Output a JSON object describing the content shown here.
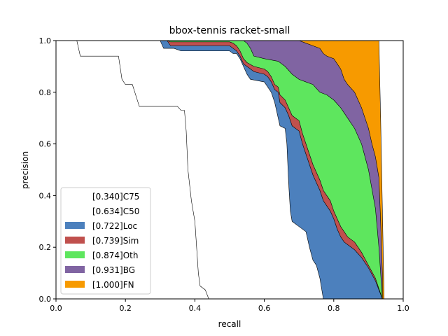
{
  "chart_data": {
    "type": "area",
    "title": "bbox-tennis racket-small",
    "xlabel": "recall",
    "ylabel": "precision",
    "xlim": [
      0,
      1
    ],
    "ylim": [
      0,
      1
    ],
    "xticks": [
      "0.0",
      "0.2",
      "0.4",
      "0.6",
      "0.8",
      "1.0"
    ],
    "yticks": [
      "0.0",
      "0.2",
      "0.4",
      "0.6",
      "0.8",
      "1.0"
    ],
    "grid": false,
    "legend_position": "lower-left",
    "series": [
      {
        "name": "[0.340]C75",
        "color": "#ffffff",
        "points": [
          [
            0,
            1
          ],
          [
            0.06,
            1
          ],
          [
            0.07,
            0.94
          ],
          [
            0.18,
            0.94
          ],
          [
            0.19,
            0.85
          ],
          [
            0.2,
            0.83
          ],
          [
            0.22,
            0.83
          ],
          [
            0.24,
            0.745
          ],
          [
            0.35,
            0.745
          ],
          [
            0.36,
            0.73
          ],
          [
            0.37,
            0.73
          ],
          [
            0.375,
            0.65
          ],
          [
            0.38,
            0.5
          ],
          [
            0.39,
            0.38
          ],
          [
            0.4,
            0.3
          ],
          [
            0.405,
            0.2
          ],
          [
            0.41,
            0.1
          ],
          [
            0.415,
            0.05
          ],
          [
            0.43,
            0.035
          ],
          [
            0.44,
            0.0
          ]
        ]
      },
      {
        "name": "[0.634]C50",
        "color": "#ffffff",
        "points": [
          [
            0,
            1
          ],
          [
            0.3,
            1
          ],
          [
            0.31,
            0.97
          ],
          [
            0.34,
            0.97
          ],
          [
            0.36,
            0.96
          ],
          [
            0.5,
            0.96
          ],
          [
            0.51,
            0.95
          ],
          [
            0.52,
            0.95
          ],
          [
            0.53,
            0.93
          ],
          [
            0.54,
            0.9
          ],
          [
            0.55,
            0.87
          ],
          [
            0.56,
            0.85
          ],
          [
            0.6,
            0.84
          ],
          [
            0.61,
            0.82
          ],
          [
            0.62,
            0.8
          ],
          [
            0.63,
            0.76
          ],
          [
            0.64,
            0.7
          ],
          [
            0.645,
            0.67
          ],
          [
            0.66,
            0.66
          ],
          [
            0.665,
            0.6
          ],
          [
            0.67,
            0.45
          ],
          [
            0.675,
            0.34
          ],
          [
            0.68,
            0.3
          ],
          [
            0.7,
            0.28
          ],
          [
            0.72,
            0.26
          ],
          [
            0.73,
            0.2
          ],
          [
            0.74,
            0.15
          ],
          [
            0.75,
            0.13
          ],
          [
            0.76,
            0.08
          ],
          [
            0.77,
            0.0
          ]
        ]
      },
      {
        "name": "[0.722]Loc",
        "color": "#4c80bd",
        "points": [
          [
            0,
            1
          ],
          [
            0.32,
            1
          ],
          [
            0.33,
            0.98
          ],
          [
            0.5,
            0.98
          ],
          [
            0.51,
            0.97
          ],
          [
            0.52,
            0.96
          ],
          [
            0.53,
            0.94
          ],
          [
            0.54,
            0.91
          ],
          [
            0.55,
            0.9
          ],
          [
            0.57,
            0.88
          ],
          [
            0.6,
            0.87
          ],
          [
            0.61,
            0.86
          ],
          [
            0.62,
            0.84
          ],
          [
            0.63,
            0.81
          ],
          [
            0.64,
            0.8
          ],
          [
            0.645,
            0.76
          ],
          [
            0.66,
            0.74
          ],
          [
            0.67,
            0.71
          ],
          [
            0.68,
            0.67
          ],
          [
            0.69,
            0.66
          ],
          [
            0.7,
            0.65
          ],
          [
            0.71,
            0.6
          ],
          [
            0.72,
            0.56
          ],
          [
            0.73,
            0.52
          ],
          [
            0.74,
            0.48
          ],
          [
            0.75,
            0.45
          ],
          [
            0.76,
            0.42
          ],
          [
            0.77,
            0.38
          ],
          [
            0.78,
            0.36
          ],
          [
            0.79,
            0.34
          ],
          [
            0.8,
            0.31
          ],
          [
            0.81,
            0.27
          ],
          [
            0.82,
            0.24
          ],
          [
            0.83,
            0.22
          ],
          [
            0.84,
            0.21
          ],
          [
            0.86,
            0.19
          ],
          [
            0.88,
            0.16
          ],
          [
            0.9,
            0.12
          ],
          [
            0.92,
            0.07
          ],
          [
            0.94,
            0.0
          ]
        ]
      },
      {
        "name": "[0.739]Sim",
        "color": "#c0504d",
        "points": [
          [
            0,
            1
          ],
          [
            0.32,
            1
          ],
          [
            0.33,
            0.995
          ],
          [
            0.5,
            0.995
          ],
          [
            0.51,
            0.99
          ],
          [
            0.52,
            0.98
          ],
          [
            0.53,
            0.96
          ],
          [
            0.54,
            0.93
          ],
          [
            0.55,
            0.915
          ],
          [
            0.57,
            0.9
          ],
          [
            0.6,
            0.89
          ],
          [
            0.61,
            0.88
          ],
          [
            0.62,
            0.86
          ],
          [
            0.63,
            0.83
          ],
          [
            0.64,
            0.82
          ],
          [
            0.645,
            0.79
          ],
          [
            0.66,
            0.77
          ],
          [
            0.67,
            0.74
          ],
          [
            0.68,
            0.71
          ],
          [
            0.69,
            0.7
          ],
          [
            0.7,
            0.69
          ],
          [
            0.71,
            0.64
          ],
          [
            0.72,
            0.6
          ],
          [
            0.73,
            0.56
          ],
          [
            0.74,
            0.52
          ],
          [
            0.75,
            0.49
          ],
          [
            0.76,
            0.46
          ],
          [
            0.77,
            0.42
          ],
          [
            0.78,
            0.4
          ],
          [
            0.79,
            0.38
          ],
          [
            0.8,
            0.34
          ],
          [
            0.81,
            0.31
          ],
          [
            0.82,
            0.28
          ],
          [
            0.83,
            0.26
          ],
          [
            0.84,
            0.24
          ],
          [
            0.86,
            0.22
          ],
          [
            0.88,
            0.18
          ],
          [
            0.9,
            0.13
          ],
          [
            0.92,
            0.08
          ],
          [
            0.94,
            0.0
          ]
        ]
      },
      {
        "name": "[0.874]Oth",
        "color": "#5ee65e",
        "points": [
          [
            0,
            1
          ],
          [
            0.32,
            1
          ],
          [
            0.5,
            1
          ],
          [
            0.54,
            1
          ],
          [
            0.55,
            0.99
          ],
          [
            0.56,
            0.97
          ],
          [
            0.57,
            0.94
          ],
          [
            0.6,
            0.93
          ],
          [
            0.64,
            0.92
          ],
          [
            0.66,
            0.9
          ],
          [
            0.68,
            0.87
          ],
          [
            0.7,
            0.85
          ],
          [
            0.72,
            0.84
          ],
          [
            0.74,
            0.83
          ],
          [
            0.76,
            0.8
          ],
          [
            0.78,
            0.79
          ],
          [
            0.8,
            0.77
          ],
          [
            0.82,
            0.74
          ],
          [
            0.84,
            0.7
          ],
          [
            0.86,
            0.66
          ],
          [
            0.88,
            0.6
          ],
          [
            0.9,
            0.5
          ],
          [
            0.92,
            0.35
          ],
          [
            0.93,
            0.2
          ],
          [
            0.935,
            0.1
          ],
          [
            0.94,
            0.0
          ]
        ]
      },
      {
        "name": "[0.931]BG",
        "color": "#8064a2",
        "points": [
          [
            0,
            1
          ],
          [
            0.55,
            1
          ],
          [
            0.7,
            1
          ],
          [
            0.72,
            0.99
          ],
          [
            0.74,
            0.98
          ],
          [
            0.76,
            0.97
          ],
          [
            0.77,
            0.95
          ],
          [
            0.78,
            0.94
          ],
          [
            0.8,
            0.93
          ],
          [
            0.81,
            0.91
          ],
          [
            0.82,
            0.89
          ],
          [
            0.83,
            0.85
          ],
          [
            0.84,
            0.83
          ],
          [
            0.86,
            0.8
          ],
          [
            0.87,
            0.77
          ],
          [
            0.88,
            0.74
          ],
          [
            0.89,
            0.7
          ],
          [
            0.9,
            0.66
          ],
          [
            0.91,
            0.6
          ],
          [
            0.92,
            0.55
          ],
          [
            0.93,
            0.47
          ],
          [
            0.935,
            0.3
          ],
          [
            0.94,
            0.1
          ],
          [
            0.94,
            0.0
          ]
        ]
      },
      {
        "name": "[1.000]FN",
        "color": "#f79a00",
        "points": [
          [
            0,
            1
          ],
          [
            0.93,
            1
          ],
          [
            0.935,
            0.7
          ],
          [
            0.94,
            0.35
          ],
          [
            0.945,
            0.0
          ]
        ]
      }
    ]
  }
}
